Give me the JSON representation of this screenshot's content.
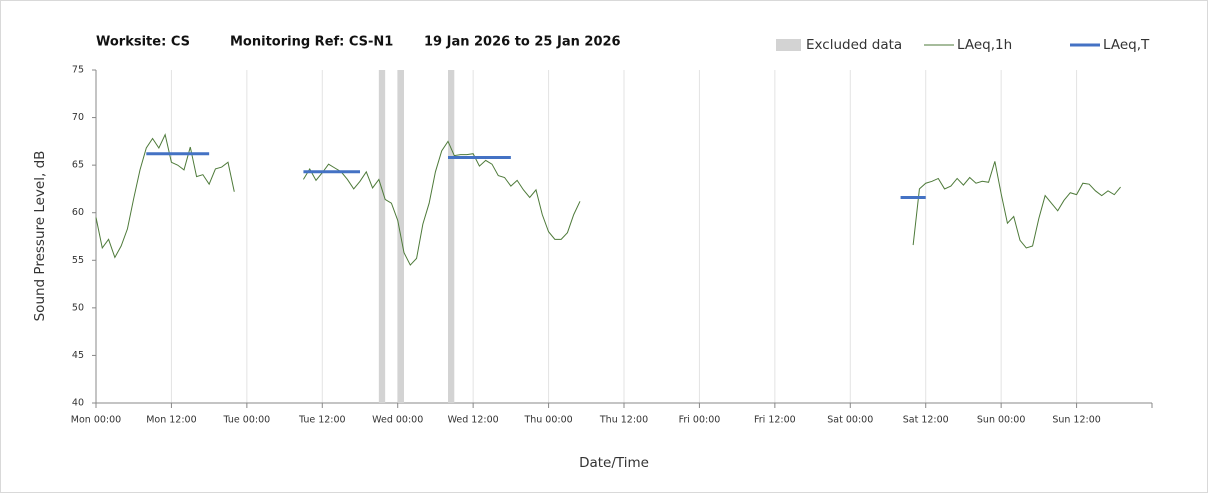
{
  "chart_data": {
    "type": "line",
    "title": [
      "Worksite: CS",
      "Monitoring Ref: CS-N1",
      "19 Jan 2026 to 25 Jan 2026"
    ],
    "xlabel": "Date/Time",
    "ylabel": "Sound Pressure Level, dB",
    "xlim": [
      0,
      168
    ],
    "ylim": [
      40,
      75
    ],
    "yticks": [
      40,
      45,
      50,
      55,
      60,
      65,
      70,
      75
    ],
    "xticks": [
      {
        "value": 0,
        "label": "Mon 00:00"
      },
      {
        "value": 12,
        "label": "Mon 12:00"
      },
      {
        "value": 24,
        "label": "Tue 00:00"
      },
      {
        "value": 36,
        "label": "Tue 12:00"
      },
      {
        "value": 48,
        "label": "Wed 00:00"
      },
      {
        "value": 60,
        "label": "Wed 12:00"
      },
      {
        "value": 72,
        "label": "Thu 00:00"
      },
      {
        "value": 84,
        "label": "Thu 12:00"
      },
      {
        "value": 96,
        "label": "Fri 00:00"
      },
      {
        "value": 108,
        "label": "Fri 12:00"
      },
      {
        "value": 120,
        "label": "Sat 00:00"
      },
      {
        "value": 132,
        "label": "Sat 12:00"
      },
      {
        "value": 144,
        "label": "Sun 00:00"
      },
      {
        "value": 156,
        "label": "Sun 12:00"
      }
    ],
    "grid": true,
    "excluded": {
      "name": "Excluded data",
      "color": "#d3d3d3",
      "ranges": [
        [
          45,
          46
        ],
        [
          48,
          49
        ],
        [
          56,
          57
        ]
      ]
    },
    "series": [
      {
        "name": "LAeq,1h",
        "color": "#4e7a3a",
        "width": 1,
        "x": [
          0,
          1,
          2,
          3,
          4,
          5,
          6,
          7,
          8,
          9,
          10,
          11,
          12,
          13,
          14,
          15,
          16,
          17,
          18,
          19,
          20,
          21,
          22,
          23,
          33,
          34,
          35,
          36,
          37,
          38,
          39,
          40,
          41,
          42,
          43,
          44,
          45,
          46,
          47,
          48,
          49,
          50,
          51,
          52,
          53,
          54,
          55,
          56,
          57,
          58,
          59,
          60,
          61,
          62,
          63,
          64,
          65,
          66,
          67,
          68,
          69,
          70,
          71,
          72,
          73,
          74,
          75,
          76,
          77,
          78,
          130,
          131,
          132,
          133,
          134,
          135,
          136,
          137,
          138,
          139,
          140,
          141,
          142,
          143,
          144,
          145,
          146,
          147,
          148,
          149,
          150,
          151,
          152,
          153,
          154,
          155,
          156,
          157,
          158,
          159,
          160,
          161,
          162,
          163
        ],
        "values": [
          59.5,
          56.3,
          57.2,
          55.3,
          56.5,
          58.3,
          61.5,
          64.5,
          66.8,
          67.8,
          66.8,
          68.2,
          65.3,
          65.0,
          64.5,
          66.9,
          63.8,
          64.0,
          63.0,
          64.6,
          64.8,
          65.3,
          62.2,
          null,
          63.5,
          64.6,
          63.4,
          64.2,
          65.1,
          64.7,
          64.3,
          63.5,
          62.5,
          63.3,
          64.3,
          62.6,
          63.5,
          61.4,
          61.0,
          59.2,
          55.8,
          54.5,
          55.2,
          58.8,
          61.0,
          64.3,
          66.5,
          67.5,
          66.0,
          66.1,
          66.1,
          66.2,
          64.9,
          65.5,
          65.1,
          63.9,
          63.7,
          62.8,
          63.4,
          62.4,
          61.6,
          62.4,
          59.8,
          58.0,
          57.2,
          57.2,
          57.9,
          59.8,
          61.2,
          null,
          56.6,
          62.5,
          63.1,
          63.3,
          63.6,
          62.5,
          62.8,
          63.6,
          62.9,
          63.7,
          63.1,
          63.3,
          63.2,
          65.4,
          62.0,
          58.9,
          59.6,
          57.1,
          56.3,
          56.5,
          59.4,
          61.8,
          61.0,
          60.2,
          61.3,
          62.1,
          61.9,
          63.1,
          63.0,
          62.3,
          61.8,
          62.3,
          61.9,
          62.7
        ]
      },
      {
        "name": "LAeq,T",
        "color": "#4472c4",
        "width": 3,
        "x": [
          8,
          18,
          19,
          33,
          42,
          43,
          56,
          66,
          67,
          128,
          132
        ],
        "values": [
          66.2,
          66.2,
          null,
          64.3,
          64.3,
          null,
          65.8,
          65.8,
          null,
          61.6,
          61.6
        ]
      }
    ]
  }
}
